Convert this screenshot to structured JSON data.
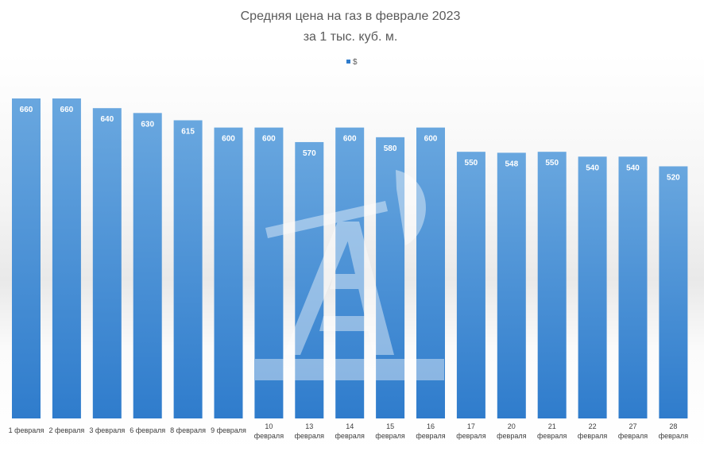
{
  "colors": {
    "bar_top": "#69a7df",
    "bar_bottom": "#2f7ccc",
    "title": "#5a5a5a",
    "label": "#ffffff",
    "tick": "#3c3c3c",
    "watermark": "#ffffff"
  },
  "watermark": {
    "type": "oil-pump-logo"
  },
  "chart_data": {
    "type": "bar",
    "title": "Средняя цена на газ в феврале 2023",
    "subtitle": "за 1 тыс. куб. м.",
    "legend_position": "top-center",
    "series": [
      {
        "name": "$",
        "values": [
          660,
          660,
          640,
          630,
          615,
          600,
          600,
          570,
          600,
          580,
          600,
          550,
          548,
          550,
          540,
          540,
          520
        ]
      }
    ],
    "categories": [
      [
        "1 февраля"
      ],
      [
        "2 февраля"
      ],
      [
        "3 февраля"
      ],
      [
        "6 февраля"
      ],
      [
        "8 февраля"
      ],
      [
        "9 февраля"
      ],
      [
        "10",
        "февраля"
      ],
      [
        "13",
        "февраля"
      ],
      [
        "14",
        "февраля"
      ],
      [
        "15",
        "февраля"
      ],
      [
        "16",
        "февраля"
      ],
      [
        "17",
        "февраля"
      ],
      [
        "20",
        "февраля"
      ],
      [
        "21",
        "февраля"
      ],
      [
        "22",
        "февраля"
      ],
      [
        "27",
        "февраля"
      ],
      [
        "28",
        "февраля"
      ]
    ],
    "ylim": [
      0,
      660
    ],
    "grid": false,
    "data_labels": true
  }
}
